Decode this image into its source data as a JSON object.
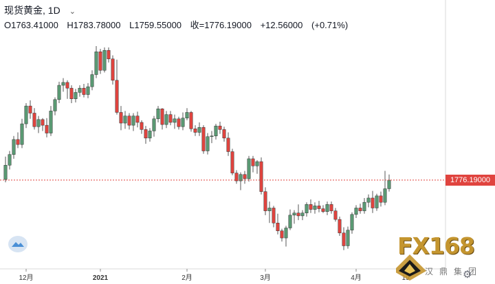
{
  "header": {
    "title": "现货黄金, 1D",
    "open": "O1763.41000",
    "high": "H1783.78000",
    "low": "L1759.55000",
    "close": "收=1776.19000",
    "change": "+12.56000",
    "change_pct": "(+0.71%)"
  },
  "price_tag": "1776.19000",
  "colors": {
    "up": "#5a9a74",
    "down": "#e0443f",
    "tag": "#e0443f",
    "logo": "#c4952f"
  },
  "logo": {
    "text": "FX168",
    "chinese": "汉鼎集团"
  },
  "icons": [
    "cloud-icon",
    "gear-icon",
    "chevron-down-icon",
    "diamond-logo-icon"
  ],
  "chart_data": {
    "type": "candlestick",
    "ylim": [
      1670,
      1990
    ],
    "last_price": 1776.19,
    "x_ticks": [
      {
        "label": "12月",
        "index": 5,
        "bold": false
      },
      {
        "label": "2021",
        "index": 23,
        "bold": true
      },
      {
        "label": "2月",
        "index": 44,
        "bold": false
      },
      {
        "label": "3月",
        "index": 63,
        "bold": false
      },
      {
        "label": "4月",
        "index": 85,
        "bold": false
      },
      {
        "label": "19",
        "index": 97,
        "bold": false
      }
    ],
    "candles": [
      [
        1777,
        1809,
        1773,
        1797
      ],
      [
        1797,
        1817,
        1791,
        1812
      ],
      [
        1812,
        1838,
        1806,
        1833
      ],
      [
        1833,
        1843,
        1821,
        1826
      ],
      [
        1826,
        1862,
        1821,
        1855
      ],
      [
        1855,
        1884,
        1849,
        1880
      ],
      [
        1880,
        1888,
        1862,
        1870
      ],
      [
        1870,
        1877,
        1847,
        1851
      ],
      [
        1851,
        1866,
        1842,
        1861
      ],
      [
        1861,
        1863,
        1845,
        1853
      ],
      [
        1853,
        1863,
        1836,
        1842
      ],
      [
        1842,
        1880,
        1838,
        1873
      ],
      [
        1873,
        1892,
        1867,
        1889
      ],
      [
        1889,
        1914,
        1884,
        1909
      ],
      [
        1909,
        1919,
        1900,
        1913
      ],
      [
        1913,
        1916,
        1890,
        1905
      ],
      [
        1905,
        1909,
        1884,
        1890
      ],
      [
        1890,
        1904,
        1885,
        1899
      ],
      [
        1899,
        1909,
        1893,
        1905
      ],
      [
        1905,
        1911,
        1892,
        1896
      ],
      [
        1896,
        1912,
        1891,
        1907
      ],
      [
        1907,
        1930,
        1902,
        1924
      ],
      [
        1924,
        1964,
        1919,
        1956
      ],
      [
        1956,
        1960,
        1925,
        1930
      ],
      [
        1930,
        1962,
        1927,
        1958
      ],
      [
        1958,
        1962,
        1941,
        1946
      ],
      [
        1946,
        1951,
        1910,
        1916
      ],
      [
        1916,
        1945,
        1868,
        1871
      ],
      [
        1871,
        1880,
        1846,
        1856
      ],
      [
        1856,
        1873,
        1848,
        1866
      ],
      [
        1866,
        1870,
        1847,
        1853
      ],
      [
        1853,
        1870,
        1845,
        1866
      ],
      [
        1866,
        1872,
        1850,
        1857
      ],
      [
        1857,
        1860,
        1841,
        1847
      ],
      [
        1847,
        1852,
        1827,
        1835
      ],
      [
        1835,
        1849,
        1830,
        1845
      ],
      [
        1845,
        1866,
        1837,
        1862
      ],
      [
        1862,
        1880,
        1857,
        1876
      ],
      [
        1876,
        1877,
        1847,
        1854
      ],
      [
        1854,
        1873,
        1849,
        1868
      ],
      [
        1868,
        1873,
        1853,
        1857
      ],
      [
        1857,
        1868,
        1848,
        1862
      ],
      [
        1862,
        1865,
        1847,
        1851
      ],
      [
        1851,
        1871,
        1846,
        1863
      ],
      [
        1863,
        1877,
        1860,
        1871
      ],
      [
        1871,
        1873,
        1844,
        1848
      ],
      [
        1848,
        1853,
        1838,
        1843
      ],
      [
        1843,
        1857,
        1838,
        1850
      ],
      [
        1850,
        1853,
        1813,
        1817
      ],
      [
        1817,
        1842,
        1812,
        1837
      ],
      [
        1837,
        1845,
        1828,
        1838
      ],
      [
        1838,
        1855,
        1833,
        1852
      ],
      [
        1852,
        1858,
        1841,
        1847
      ],
      [
        1847,
        1851,
        1830,
        1835
      ],
      [
        1835,
        1843,
        1810,
        1816
      ],
      [
        1816,
        1820,
        1783,
        1786
      ],
      [
        1786,
        1790,
        1771,
        1775
      ],
      [
        1775,
        1787,
        1762,
        1784
      ],
      [
        1784,
        1789,
        1771,
        1778
      ],
      [
        1778,
        1810,
        1774,
        1806
      ],
      [
        1806,
        1810,
        1787,
        1796
      ],
      [
        1796,
        1804,
        1785,
        1802
      ],
      [
        1802,
        1808,
        1756,
        1760
      ],
      [
        1760,
        1766,
        1727,
        1733
      ],
      [
        1733,
        1746,
        1716,
        1737
      ],
      [
        1737,
        1740,
        1710,
        1716
      ],
      [
        1716,
        1729,
        1700,
        1705
      ],
      [
        1705,
        1708,
        1690,
        1695
      ],
      [
        1695,
        1712,
        1683,
        1709
      ],
      [
        1709,
        1735,
        1706,
        1727
      ],
      [
        1727,
        1734,
        1715,
        1730
      ],
      [
        1730,
        1742,
        1720,
        1726
      ],
      [
        1726,
        1734,
        1720,
        1730
      ],
      [
        1730,
        1745,
        1725,
        1742
      ],
      [
        1742,
        1749,
        1730,
        1735
      ],
      [
        1735,
        1745,
        1729,
        1740
      ],
      [
        1740,
        1747,
        1731,
        1736
      ],
      [
        1736,
        1741,
        1730,
        1732
      ],
      [
        1732,
        1746,
        1727,
        1742
      ],
      [
        1742,
        1746,
        1729,
        1733
      ],
      [
        1733,
        1737,
        1718,
        1721
      ],
      [
        1721,
        1725,
        1698,
        1702
      ],
      [
        1702,
        1710,
        1678,
        1684
      ],
      [
        1684,
        1711,
        1680,
        1706
      ],
      [
        1706,
        1731,
        1701,
        1728
      ],
      [
        1728,
        1741,
        1723,
        1737
      ],
      [
        1737,
        1743,
        1729,
        1733
      ],
      [
        1733,
        1751,
        1729,
        1745
      ],
      [
        1745,
        1756,
        1738,
        1751
      ],
      [
        1751,
        1761,
        1730,
        1737
      ],
      [
        1737,
        1757,
        1733,
        1754
      ],
      [
        1754,
        1760,
        1739,
        1745
      ],
      [
        1745,
        1789,
        1741,
        1764
      ],
      [
        1764,
        1784,
        1760,
        1776
      ]
    ]
  }
}
